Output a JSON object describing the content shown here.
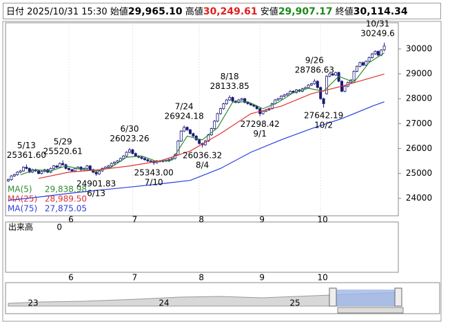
{
  "header": {
    "date_label": "日付",
    "date": "2025/10/31 15:30",
    "open_label": "始値",
    "open": {
      "value": 29965.1,
      "label": "29,965.10"
    },
    "high_label": "高値",
    "high": {
      "value": 30249.61,
      "label": "30,249.61"
    },
    "low_label": "安値",
    "low": {
      "value": 29907.17,
      "label": "29,907.17"
    },
    "close_label": "終値",
    "close": {
      "value": 30114.34,
      "label": "30,114.34"
    }
  },
  "chart_data": {
    "type": "candlestick",
    "categories": [
      null,
      null,
      null,
      null,
      null,
      null,
      null,
      null,
      null,
      null,
      null,
      null,
      null,
      null,
      null,
      null,
      null,
      null,
      null,
      null,
      "6",
      null,
      null,
      null,
      null,
      null,
      null,
      null,
      null,
      null,
      null,
      null,
      null,
      null,
      null,
      null,
      null,
      null,
      null,
      null,
      null,
      "7",
      null,
      null,
      null,
      null,
      null,
      null,
      null,
      null,
      null,
      null,
      null,
      null,
      null,
      null,
      null,
      null,
      null,
      null,
      null,
      null,
      null,
      "8",
      null,
      null,
      null,
      null,
      null,
      null,
      null,
      null,
      null,
      null,
      null,
      null,
      null,
      null,
      null,
      null,
      null,
      null,
      null,
      "9",
      null,
      null,
      null,
      null,
      null,
      null,
      null,
      null,
      null,
      null,
      null,
      null,
      null,
      null,
      null,
      null,
      null,
      null,
      null,
      "10",
      null,
      null,
      null,
      null,
      null,
      null,
      null,
      null,
      null,
      null,
      null,
      null,
      null,
      null,
      null,
      null,
      null,
      null,
      null,
      null,
      null
    ],
    "candles": [
      [
        24700,
        24790,
        24660,
        24750
      ],
      [
        24750,
        24940,
        24710,
        24900
      ],
      [
        24900,
        24990,
        24860,
        24950
      ],
      [
        24950,
        25090,
        24910,
        25050
      ],
      [
        25050,
        25140,
        25010,
        25100
      ],
      [
        25100,
        25290,
        25060,
        25250
      ],
      [
        25250,
        25361.6,
        25160,
        25200
      ],
      [
        25200,
        25240,
        25010,
        25050
      ],
      [
        25050,
        25190,
        25010,
        25150
      ],
      [
        25150,
        25190,
        25060,
        25100
      ],
      [
        25100,
        25140,
        24960,
        25000
      ],
      [
        25000,
        25120,
        24960,
        25080
      ],
      [
        25080,
        25190,
        25040,
        25150
      ],
      [
        25150,
        25190,
        25010,
        25050
      ],
      [
        25050,
        25240,
        25010,
        25200
      ],
      [
        25200,
        25340,
        25160,
        25300
      ],
      [
        25300,
        25340,
        25210,
        25250
      ],
      [
        25250,
        25440,
        25210,
        25400
      ],
      [
        25400,
        25520.61,
        25310,
        25350
      ],
      [
        25350,
        25390,
        25160,
        25200
      ],
      [
        25200,
        25240,
        25110,
        25150
      ],
      [
        25150,
        25190,
        25060,
        25100
      ],
      [
        25100,
        25240,
        25060,
        25200
      ],
      [
        25200,
        25290,
        25160,
        25250
      ],
      [
        25250,
        25290,
        25110,
        25150
      ],
      [
        25150,
        25240,
        25110,
        25200
      ],
      [
        25200,
        25340,
        25160,
        25300
      ],
      [
        25300,
        25340,
        25110,
        25150
      ],
      [
        25150,
        25190,
        25010,
        25050
      ],
      [
        25050,
        25090,
        24901.83,
        24980
      ],
      [
        24980,
        25140,
        24940,
        25100
      ],
      [
        25100,
        25240,
        25060,
        25200
      ],
      [
        25200,
        25290,
        25160,
        25250
      ],
      [
        25250,
        25340,
        25210,
        25300
      ],
      [
        25300,
        25440,
        25260,
        25400
      ],
      [
        25400,
        25490,
        25360,
        25450
      ],
      [
        25450,
        25540,
        25410,
        25500
      ],
      [
        25500,
        25640,
        25460,
        25600
      ],
      [
        25600,
        25740,
        25560,
        25700
      ],
      [
        25700,
        25890,
        25660,
        25850
      ],
      [
        25850,
        26023.26,
        25810,
        25950
      ],
      [
        25950,
        25990,
        25760,
        25800
      ],
      [
        25800,
        25840,
        25660,
        25700
      ],
      [
        25700,
        25740,
        25610,
        25650
      ],
      [
        25650,
        25690,
        25560,
        25600
      ],
      [
        25600,
        25640,
        25510,
        25550
      ],
      [
        25550,
        25590,
        25460,
        25500
      ],
      [
        25500,
        25540,
        25440,
        25480
      ],
      [
        25480,
        25520,
        25343,
        25430
      ],
      [
        25430,
        25540,
        25390,
        25500
      ],
      [
        25500,
        25540,
        25440,
        25480
      ],
      [
        25480,
        25560,
        25440,
        25520
      ],
      [
        25520,
        25560,
        25460,
        25500
      ],
      [
        25500,
        25600,
        25460,
        25560
      ],
      [
        25560,
        25640,
        25520,
        25600
      ],
      [
        25600,
        25790,
        25560,
        25750
      ],
      [
        25750,
        26340,
        25710,
        26300
      ],
      [
        26300,
        26740,
        26260,
        26700
      ],
      [
        26700,
        26924.18,
        26660,
        26850
      ],
      [
        26850,
        26890,
        26710,
        26750
      ],
      [
        26750,
        26790,
        26560,
        26600
      ],
      [
        26600,
        26640,
        26460,
        26500
      ],
      [
        26500,
        26540,
        26310,
        26350
      ],
      [
        26350,
        26390,
        26160,
        26200
      ],
      [
        26200,
        26240,
        26036.32,
        26150
      ],
      [
        26150,
        26340,
        26110,
        26300
      ],
      [
        26300,
        26590,
        26260,
        26550
      ],
      [
        26550,
        26840,
        26510,
        26800
      ],
      [
        26800,
        27140,
        26760,
        27100
      ],
      [
        27100,
        27440,
        27060,
        27400
      ],
      [
        27400,
        27640,
        27360,
        27600
      ],
      [
        27600,
        27840,
        27560,
        27800
      ],
      [
        27800,
        27990,
        27760,
        27950
      ],
      [
        27950,
        28133.85,
        27910,
        28050
      ],
      [
        28050,
        28090,
        27860,
        27900
      ],
      [
        27900,
        27940,
        27810,
        27850
      ],
      [
        27850,
        27990,
        27810,
        27950
      ],
      [
        27950,
        28040,
        27910,
        28000
      ],
      [
        28000,
        28040,
        27810,
        27850
      ],
      [
        27850,
        27890,
        27760,
        27800
      ],
      [
        27800,
        27840,
        27710,
        27750
      ],
      [
        27750,
        27790,
        27660,
        27700
      ],
      [
        27700,
        27740,
        27560,
        27600
      ],
      [
        27600,
        27640,
        27298.42,
        27400
      ],
      [
        27400,
        27540,
        27360,
        27500
      ],
      [
        27500,
        27590,
        27460,
        27550
      ],
      [
        27550,
        27640,
        27510,
        27600
      ],
      [
        27600,
        27840,
        27560,
        27800
      ],
      [
        27800,
        27990,
        27760,
        27950
      ],
      [
        27950,
        28040,
        27910,
        28000
      ],
      [
        28000,
        28140,
        27960,
        28100
      ],
      [
        28100,
        28190,
        28060,
        28150
      ],
      [
        28150,
        28240,
        28110,
        28200
      ],
      [
        28200,
        28340,
        28160,
        28300
      ],
      [
        28300,
        28340,
        28210,
        28250
      ],
      [
        28250,
        28390,
        28210,
        28350
      ],
      [
        28350,
        28390,
        28260,
        28300
      ],
      [
        28300,
        28440,
        28260,
        28400
      ],
      [
        28400,
        28490,
        28360,
        28450
      ],
      [
        28450,
        28590,
        28410,
        28550
      ],
      [
        28550,
        28640,
        28510,
        28600
      ],
      [
        28600,
        28786.63,
        28560,
        28700
      ],
      [
        28700,
        28740,
        28410,
        28450
      ],
      [
        28450,
        28490,
        27960,
        28000
      ],
      [
        28000,
        28040,
        27642.19,
        27800
      ],
      [
        28200,
        28940,
        28160,
        28900
      ],
      [
        28900,
        29040,
        28860,
        29000
      ],
      [
        29000,
        29040,
        28910,
        28950
      ],
      [
        28950,
        29090,
        28910,
        29050
      ],
      [
        29050,
        29090,
        28660,
        28700
      ],
      [
        28700,
        28740,
        28260,
        28300
      ],
      [
        28300,
        28540,
        28260,
        28500
      ],
      [
        28500,
        28690,
        28460,
        28650
      ],
      [
        28650,
        28790,
        28610,
        28750
      ],
      [
        28750,
        29140,
        28710,
        29100
      ],
      [
        29100,
        29340,
        29060,
        29300
      ],
      [
        29300,
        29490,
        29260,
        29450
      ],
      [
        29450,
        29490,
        29310,
        29350
      ],
      [
        29350,
        29540,
        29310,
        29500
      ],
      [
        29500,
        29690,
        29460,
        29650
      ],
      [
        29650,
        29840,
        29610,
        29800
      ],
      [
        29800,
        29940,
        29760,
        29900
      ],
      [
        29900,
        29940,
        29710,
        29750
      ],
      [
        29750,
        29990,
        29710,
        29950
      ],
      [
        29965.1,
        30249.61,
        29907.17,
        30114.34
      ]
    ],
    "up_color": "#ffffff",
    "down_color": "#1a1a7a",
    "outline_color": "#1a1a7a",
    "ylim": [
      23300,
      31050
    ],
    "yticks": [
      24000,
      25000,
      26000,
      27000,
      28000,
      29000,
      30000
    ],
    "ma_lines": [
      {
        "name": "MA(5)",
        "color": "#2e8b2e",
        "x": [
          4,
          9,
          14,
          19,
          24,
          29,
          34,
          39,
          44,
          49,
          54,
          59,
          64,
          69,
          74,
          79,
          84,
          89,
          94,
          99,
          104,
          109,
          114,
          119,
          124
        ],
        "values": [
          24950,
          25150,
          25100,
          25300,
          25170,
          25100,
          25250,
          25650,
          25700,
          25480,
          25540,
          26500,
          26350,
          26830,
          27860,
          27880,
          27600,
          27850,
          28240,
          28420,
          28300,
          28900,
          28660,
          29450,
          29838.98
        ],
        "legend_value": {
          "value": 29838.98,
          "label": "29,838.98"
        }
      },
      {
        "name": "MA(25)",
        "color": "#e03030",
        "x": [
          10,
          20,
          30,
          40,
          50,
          60,
          70,
          80,
          90,
          100,
          110,
          120,
          124
        ],
        "values": [
          24800,
          25050,
          25150,
          25300,
          25500,
          25900,
          26600,
          27400,
          27700,
          28200,
          28500,
          28850,
          28989.5
        ],
        "legend_value": {
          "value": 28989.5,
          "label": "28,989.50"
        }
      },
      {
        "name": "MA(75)",
        "color": "#2a3ee0",
        "x": [
          0,
          10,
          20,
          30,
          40,
          50,
          60,
          70,
          80,
          90,
          100,
          110,
          120,
          124
        ],
        "values": [
          23920,
          24050,
          24200,
          24330,
          24450,
          24580,
          24720,
          25200,
          25850,
          26350,
          26800,
          27200,
          27700,
          27875.05
        ],
        "legend_value": {
          "value": 27875.05,
          "label": "27,875.05"
        }
      }
    ],
    "annotations": [
      {
        "candle": 6,
        "date": "5/13",
        "value": 25361.6,
        "label": "25361.60",
        "side": "high"
      },
      {
        "candle": 18,
        "date": "5/29",
        "value": 25520.61,
        "label": "25520.61",
        "side": "high"
      },
      {
        "candle": 29,
        "date": "6/13",
        "value": 24901.83,
        "label": "24901.83",
        "side": "low"
      },
      {
        "candle": 40,
        "date": "6/30",
        "value": 26023.26,
        "label": "26023.26",
        "side": "high"
      },
      {
        "candle": 48,
        "date": "7/10",
        "value": 25343,
        "label": "25343.00",
        "side": "low"
      },
      {
        "candle": 58,
        "date": "7/24",
        "value": 26924.18,
        "label": "26924.18",
        "side": "high"
      },
      {
        "candle": 64,
        "date": "8/4",
        "value": 26036.32,
        "label": "26036.32",
        "side": "low"
      },
      {
        "candle": 73,
        "date": "8/18",
        "value": 28133.85,
        "label": "28133.85",
        "side": "high"
      },
      {
        "candle": 83,
        "date": "9/1",
        "value": 27298.42,
        "label": "27298.42",
        "side": "low"
      },
      {
        "candle": 101,
        "date": "9/26",
        "value": 28786.63,
        "label": "28786.63",
        "side": "high"
      },
      {
        "candle": 104,
        "date": "10/2",
        "value": 27642.19,
        "label": "27642.19",
        "side": "low"
      },
      {
        "candle": 124,
        "date": "10/31",
        "value": 30249.6,
        "label": "30249.6",
        "side": "high"
      }
    ],
    "volume": {
      "label": "出来高",
      "value": 0
    },
    "navigator": {
      "years": [
        "23",
        "24",
        "25"
      ]
    }
  }
}
